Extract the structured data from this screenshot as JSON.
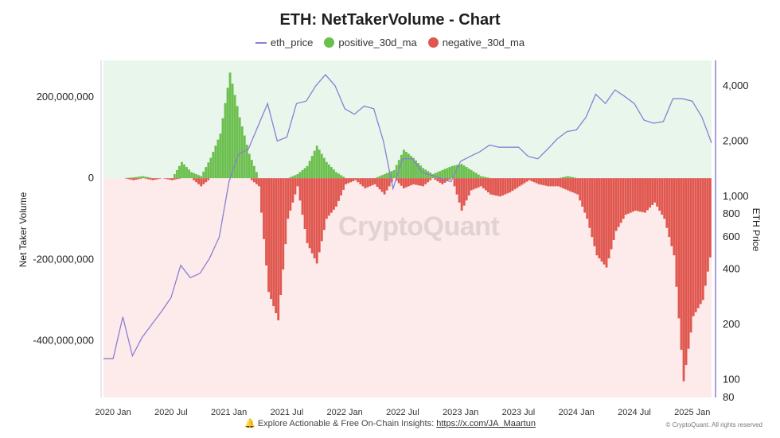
{
  "title": "ETH: NetTakerVolume - Chart",
  "legend": [
    {
      "label": "eth_price",
      "color": "#8a7fd3",
      "shape": "line"
    },
    {
      "label": "positive_30d_ma",
      "color": "#6cbf4f",
      "shape": "dot"
    },
    {
      "label": "negative_30d_ma",
      "color": "#e0574f",
      "shape": "dot"
    }
  ],
  "watermark": "CryptoQuant",
  "footer": {
    "icon": "bell-icon",
    "text": "Explore Actionable & Free On-Chain Insights: ",
    "link": "https://x.com/JA_Maartun"
  },
  "copyright": "© CryptoQuant. All rights reserved",
  "colors": {
    "positive_bg": "#e9f6ec",
    "negative_bg": "#fdeaea",
    "positive": "#6cbf4f",
    "negative": "#e0574f",
    "price": "#8a7fd3"
  },
  "chart_data": {
    "type": "bar",
    "title": "ETH: NetTakerVolume - Chart",
    "ylabel": "Net Taker Volume",
    "y2label": "ETH Price",
    "ylim": [
      -540000000,
      290000000
    ],
    "y2lim": [
      80,
      5500
    ],
    "y2scale": "log",
    "yticks": [
      {
        "value": 200000000,
        "label": "200,000,000"
      },
      {
        "value": 0,
        "label": "0"
      },
      {
        "value": -200000000,
        "label": "-200,000,000"
      },
      {
        "value": -400000000,
        "label": "-400,000,000"
      }
    ],
    "y2ticks": [
      {
        "value": 4000,
        "label": "4,000"
      },
      {
        "value": 2000,
        "label": "2,000"
      },
      {
        "value": 1000,
        "label": "1,000"
      },
      {
        "value": 800,
        "label": "800"
      },
      {
        "value": 600,
        "label": "600"
      },
      {
        "value": 400,
        "label": "400"
      },
      {
        "value": 200,
        "label": "200"
      },
      {
        "value": 100,
        "label": "100"
      },
      {
        "value": 80,
        "label": "80"
      }
    ],
    "xticks": [
      "2020 Jan",
      "2020 Jul",
      "2021 Jan",
      "2021 Jul",
      "2022 Jan",
      "2022 Jul",
      "2023 Jan",
      "2023 Jul",
      "2024 Jan",
      "2024 Jul",
      "2025 Jan"
    ],
    "x_start": "2019-12",
    "x_end": "2025-03",
    "months": [
      "2019-12",
      "2020-01",
      "2020-02",
      "2020-03",
      "2020-04",
      "2020-05",
      "2020-06",
      "2020-07",
      "2020-08",
      "2020-09",
      "2020-10",
      "2020-11",
      "2020-12",
      "2021-01",
      "2021-02",
      "2021-03",
      "2021-04",
      "2021-05",
      "2021-06",
      "2021-07",
      "2021-08",
      "2021-09",
      "2021-10",
      "2021-11",
      "2021-12",
      "2022-01",
      "2022-02",
      "2022-03",
      "2022-04",
      "2022-05",
      "2022-06",
      "2022-07",
      "2022-08",
      "2022-09",
      "2022-10",
      "2022-11",
      "2022-12",
      "2023-01",
      "2023-02",
      "2023-03",
      "2023-04",
      "2023-05",
      "2023-06",
      "2023-07",
      "2023-08",
      "2023-09",
      "2023-10",
      "2023-11",
      "2023-12",
      "2024-01",
      "2024-02",
      "2024-03",
      "2024-04",
      "2024-05",
      "2024-06",
      "2024-07",
      "2024-08",
      "2024-09",
      "2024-10",
      "2024-11",
      "2024-12",
      "2025-01",
      "2025-02",
      "2025-03"
    ],
    "series": [
      {
        "name": "positive_30d_ma",
        "values": [
          0,
          0,
          0,
          2000000,
          5000000,
          0,
          0,
          0,
          40000000,
          15000000,
          5000000,
          50000000,
          110000000,
          260000000,
          150000000,
          60000000,
          0,
          0,
          0,
          0,
          10000000,
          30000000,
          80000000,
          40000000,
          15000000,
          0,
          0,
          0,
          0,
          10000000,
          20000000,
          70000000,
          50000000,
          25000000,
          10000000,
          20000000,
          30000000,
          35000000,
          20000000,
          5000000,
          0,
          0,
          0,
          0,
          0,
          0,
          0,
          0,
          5000000,
          0,
          0,
          0,
          0,
          0,
          0,
          0,
          0,
          0,
          0,
          0,
          0,
          0,
          0,
          0
        ]
      },
      {
        "name": "negative_30d_ma",
        "values": [
          0,
          0,
          0,
          -5000000,
          0,
          -5000000,
          0,
          -5000000,
          0,
          0,
          -20000000,
          0,
          0,
          0,
          0,
          0,
          -20000000,
          -280000000,
          -350000000,
          -100000000,
          -20000000,
          -160000000,
          -210000000,
          -100000000,
          -70000000,
          -15000000,
          -5000000,
          -25000000,
          -15000000,
          -40000000,
          0,
          -25000000,
          -15000000,
          -20000000,
          0,
          -15000000,
          0,
          -80000000,
          -30000000,
          -20000000,
          -40000000,
          -45000000,
          -35000000,
          -20000000,
          -5000000,
          -15000000,
          -20000000,
          -20000000,
          -30000000,
          -40000000,
          -100000000,
          -190000000,
          -220000000,
          -130000000,
          -90000000,
          -80000000,
          -85000000,
          -60000000,
          -100000000,
          -190000000,
          -500000000,
          -340000000,
          -300000000,
          -160000000
        ]
      },
      {
        "name": "eth_price",
        "values": [
          130,
          130,
          220,
          135,
          170,
          200,
          235,
          280,
          420,
          360,
          380,
          460,
          600,
          1200,
          1700,
          1800,
          2400,
          3200,
          2000,
          2100,
          3200,
          3300,
          4000,
          4600,
          4000,
          3000,
          2800,
          3100,
          3000,
          2000,
          1100,
          1600,
          1600,
          1350,
          1300,
          1250,
          1200,
          1550,
          1650,
          1750,
          1900,
          1850,
          1850,
          1850,
          1650,
          1600,
          1800,
          2050,
          2250,
          2300,
          2700,
          3600,
          3200,
          3800,
          3500,
          3200,
          2600,
          2500,
          2550,
          3400,
          3400,
          3300,
          2700,
          1950
        ]
      }
    ]
  }
}
